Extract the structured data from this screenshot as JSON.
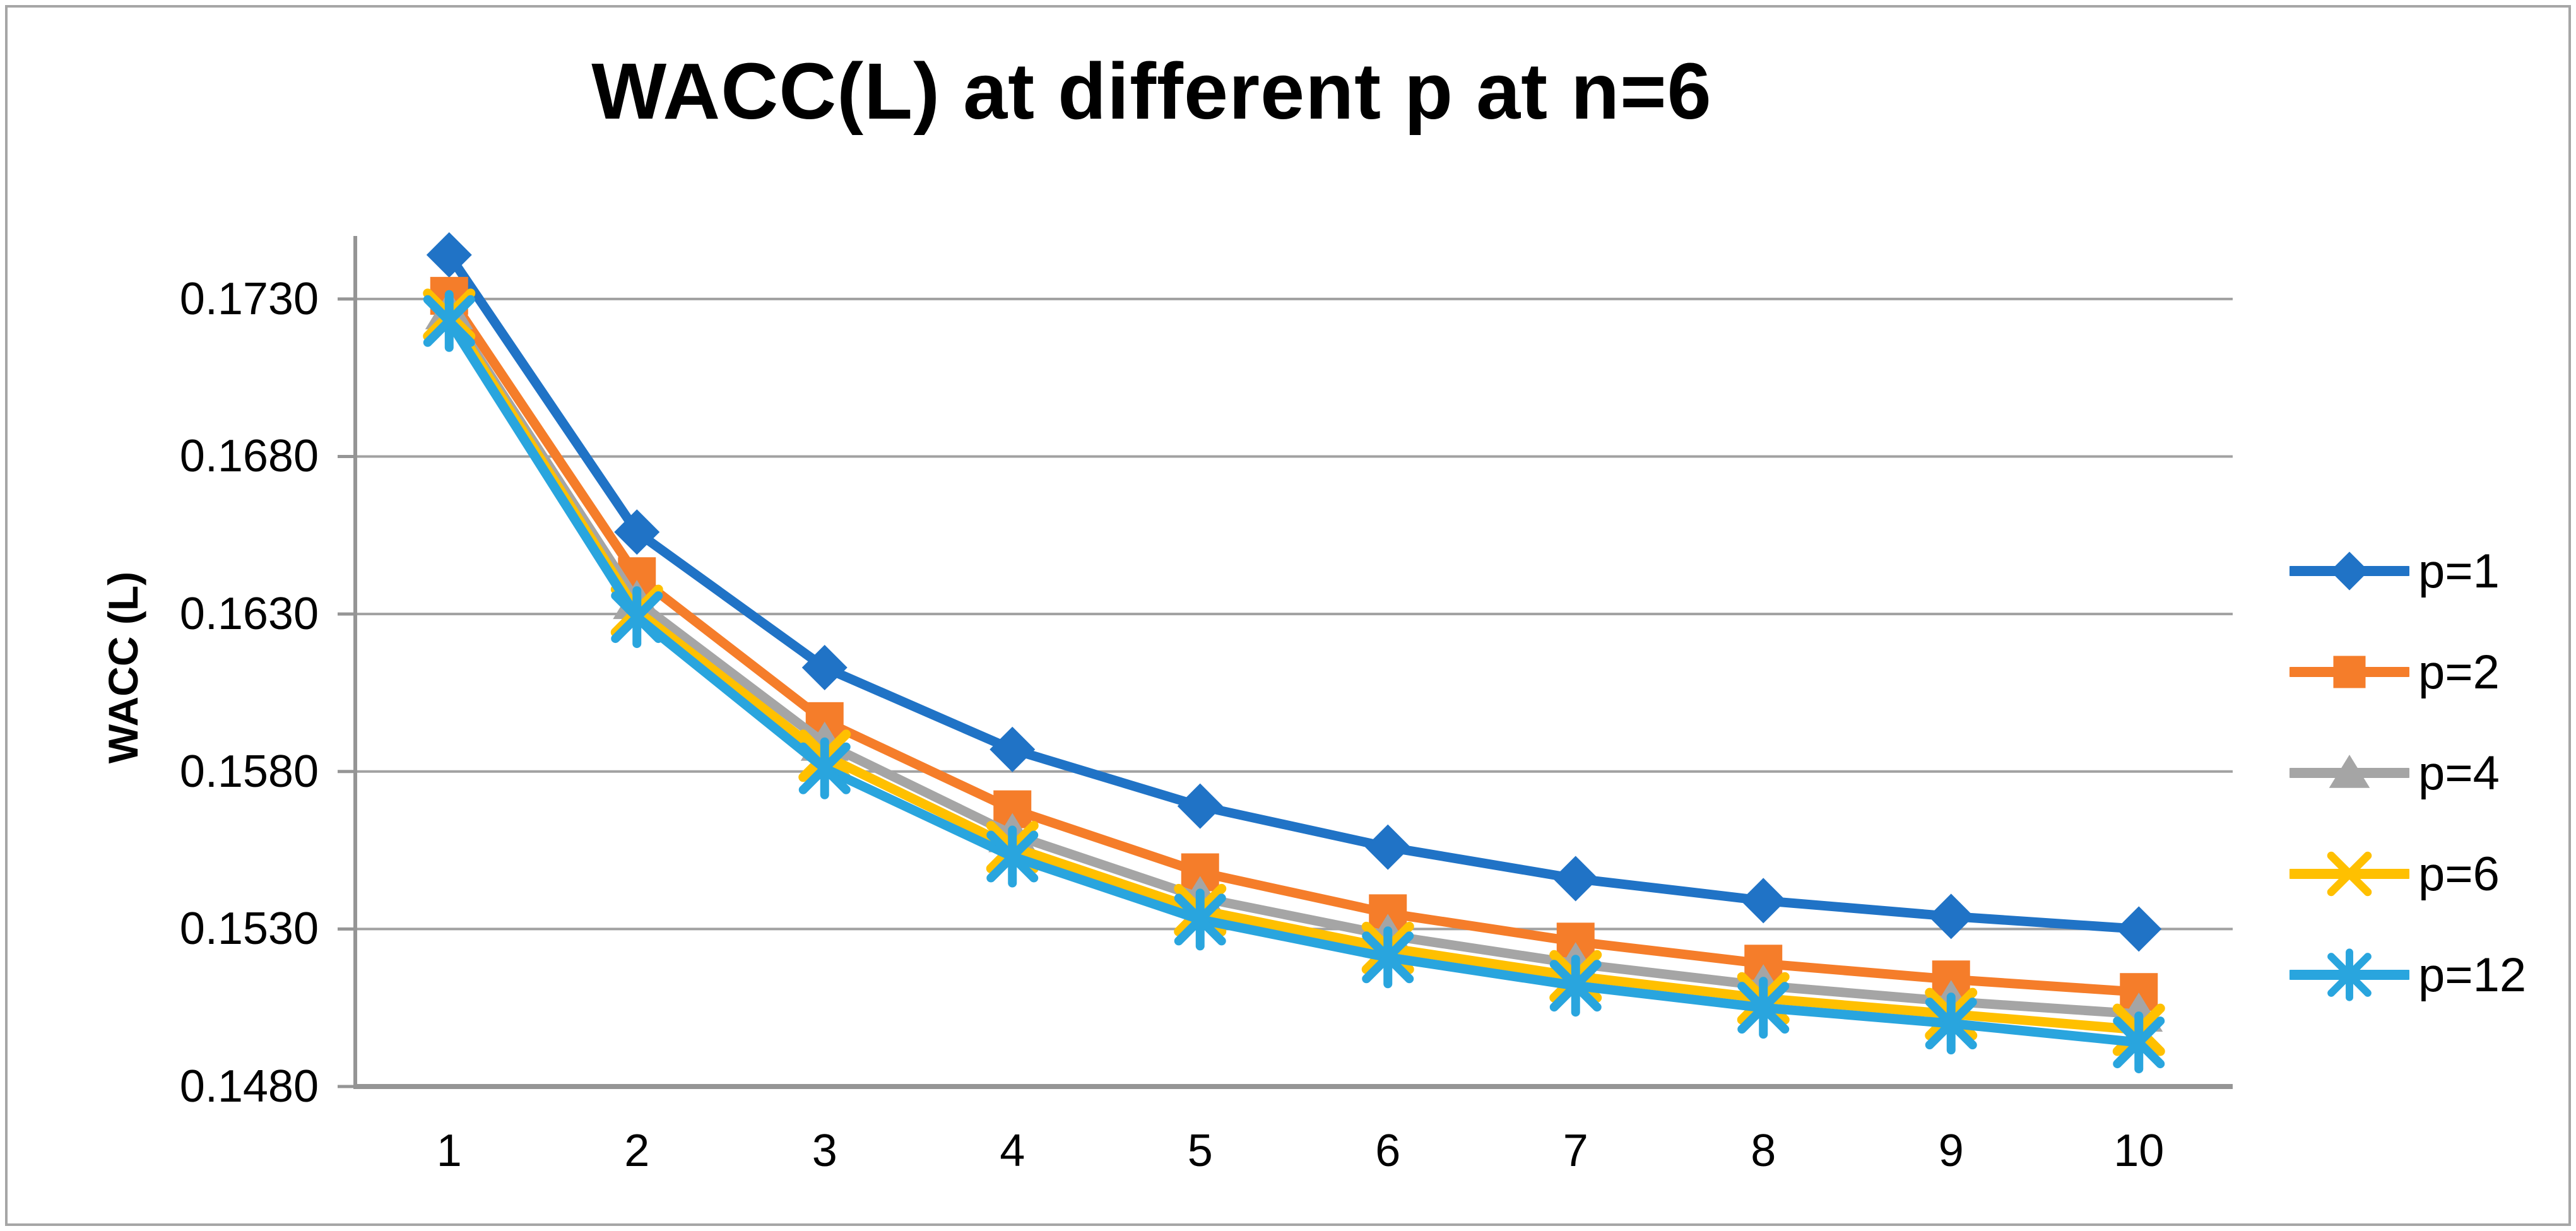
{
  "chart": {
    "title": "WACC(L) at different p at n=6",
    "y_axis_title": "WACC (L)",
    "y_tick_labels": [
      "0.1480",
      "0.1530",
      "0.1580",
      "0.1630",
      "0.1680",
      "0.1730"
    ],
    "x_tick_labels": [
      "1",
      "2",
      "3",
      "4",
      "5",
      "6",
      "7",
      "8",
      "9",
      "10"
    ]
  },
  "chart_data": {
    "type": "line",
    "title": "WACC(L) at different p at n=6",
    "xlabel": "",
    "ylabel": "WACC (L)",
    "x": [
      1,
      2,
      3,
      4,
      5,
      6,
      7,
      8,
      9,
      10
    ],
    "ylim": [
      0.148,
      0.175
    ],
    "y_major_unit": 0.005,
    "y_gridline_values": [
      0.148,
      0.153,
      0.158,
      0.163,
      0.168,
      0.173
    ],
    "grid": "horizontal-major",
    "legend_position": "right",
    "series": [
      {
        "name": "p=1",
        "color": "#2073C6",
        "marker": "diamond",
        "values": [
          0.1744,
          0.1656,
          0.1613,
          0.1587,
          0.1569,
          0.1556,
          0.1546,
          0.1539,
          0.1534,
          0.153
        ]
      },
      {
        "name": "p=2",
        "color": "#F57D2A",
        "marker": "square",
        "values": [
          0.1731,
          0.1642,
          0.1596,
          0.1568,
          0.1548,
          0.1535,
          0.1526,
          0.1519,
          0.1514,
          0.151
        ]
      },
      {
        "name": "p=4",
        "color": "#A5A5A5",
        "marker": "triangle",
        "values": [
          0.1726,
          0.1634,
          0.1589,
          0.156,
          0.154,
          0.1528,
          0.1519,
          0.1512,
          0.1507,
          0.1503
        ]
      },
      {
        "name": "p=6",
        "color": "#FFC000",
        "marker": "x",
        "values": [
          0.1725,
          0.1631,
          0.1585,
          0.1556,
          0.1536,
          0.1524,
          0.1515,
          0.1508,
          0.1503,
          0.1498
        ]
      },
      {
        "name": "p=12",
        "color": "#29A5DE",
        "marker": "asterisk",
        "values": [
          0.1723,
          0.1629,
          0.1581,
          0.1553,
          0.1533,
          0.1521,
          0.1512,
          0.1505,
          0.15,
          0.1494
        ]
      }
    ]
  },
  "colors": {
    "background": "#FFFFFF",
    "border": "#A6A6A6",
    "gridline": "#A1A1A1",
    "axis": "#959595",
    "text": "#000000"
  }
}
